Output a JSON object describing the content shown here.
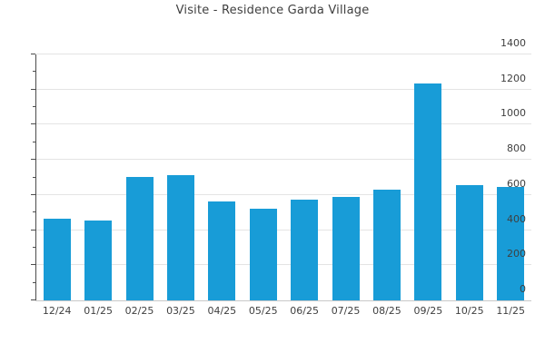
{
  "title": "Visite - Residence Garda Village",
  "colors": {
    "bar": "#189cd7",
    "gridline": "#e4e4e4",
    "y_axis": "#4d4d4d",
    "x_axis": "#c9c9c9",
    "text": "#3f3f3f",
    "background": "#ffffff"
  },
  "chart_data": {
    "type": "bar",
    "title": "Visite - Residence Garda Village",
    "categories": [
      "12/24",
      "01/25",
      "02/25",
      "03/25",
      "04/25",
      "05/25",
      "06/25",
      "07/25",
      "08/25",
      "09/25",
      "10/25",
      "11/25"
    ],
    "values": [
      465,
      455,
      705,
      715,
      565,
      520,
      575,
      590,
      630,
      1235,
      655,
      645
    ],
    "xlabel": "",
    "ylabel": "",
    "ylim": [
      0,
      1400
    ],
    "yticks": [
      0,
      200,
      400,
      600,
      800,
      1000,
      1200,
      1400
    ],
    "minor_ytick_step": 100,
    "grid": true,
    "legend": "none",
    "bar_color": "#189cd7"
  }
}
